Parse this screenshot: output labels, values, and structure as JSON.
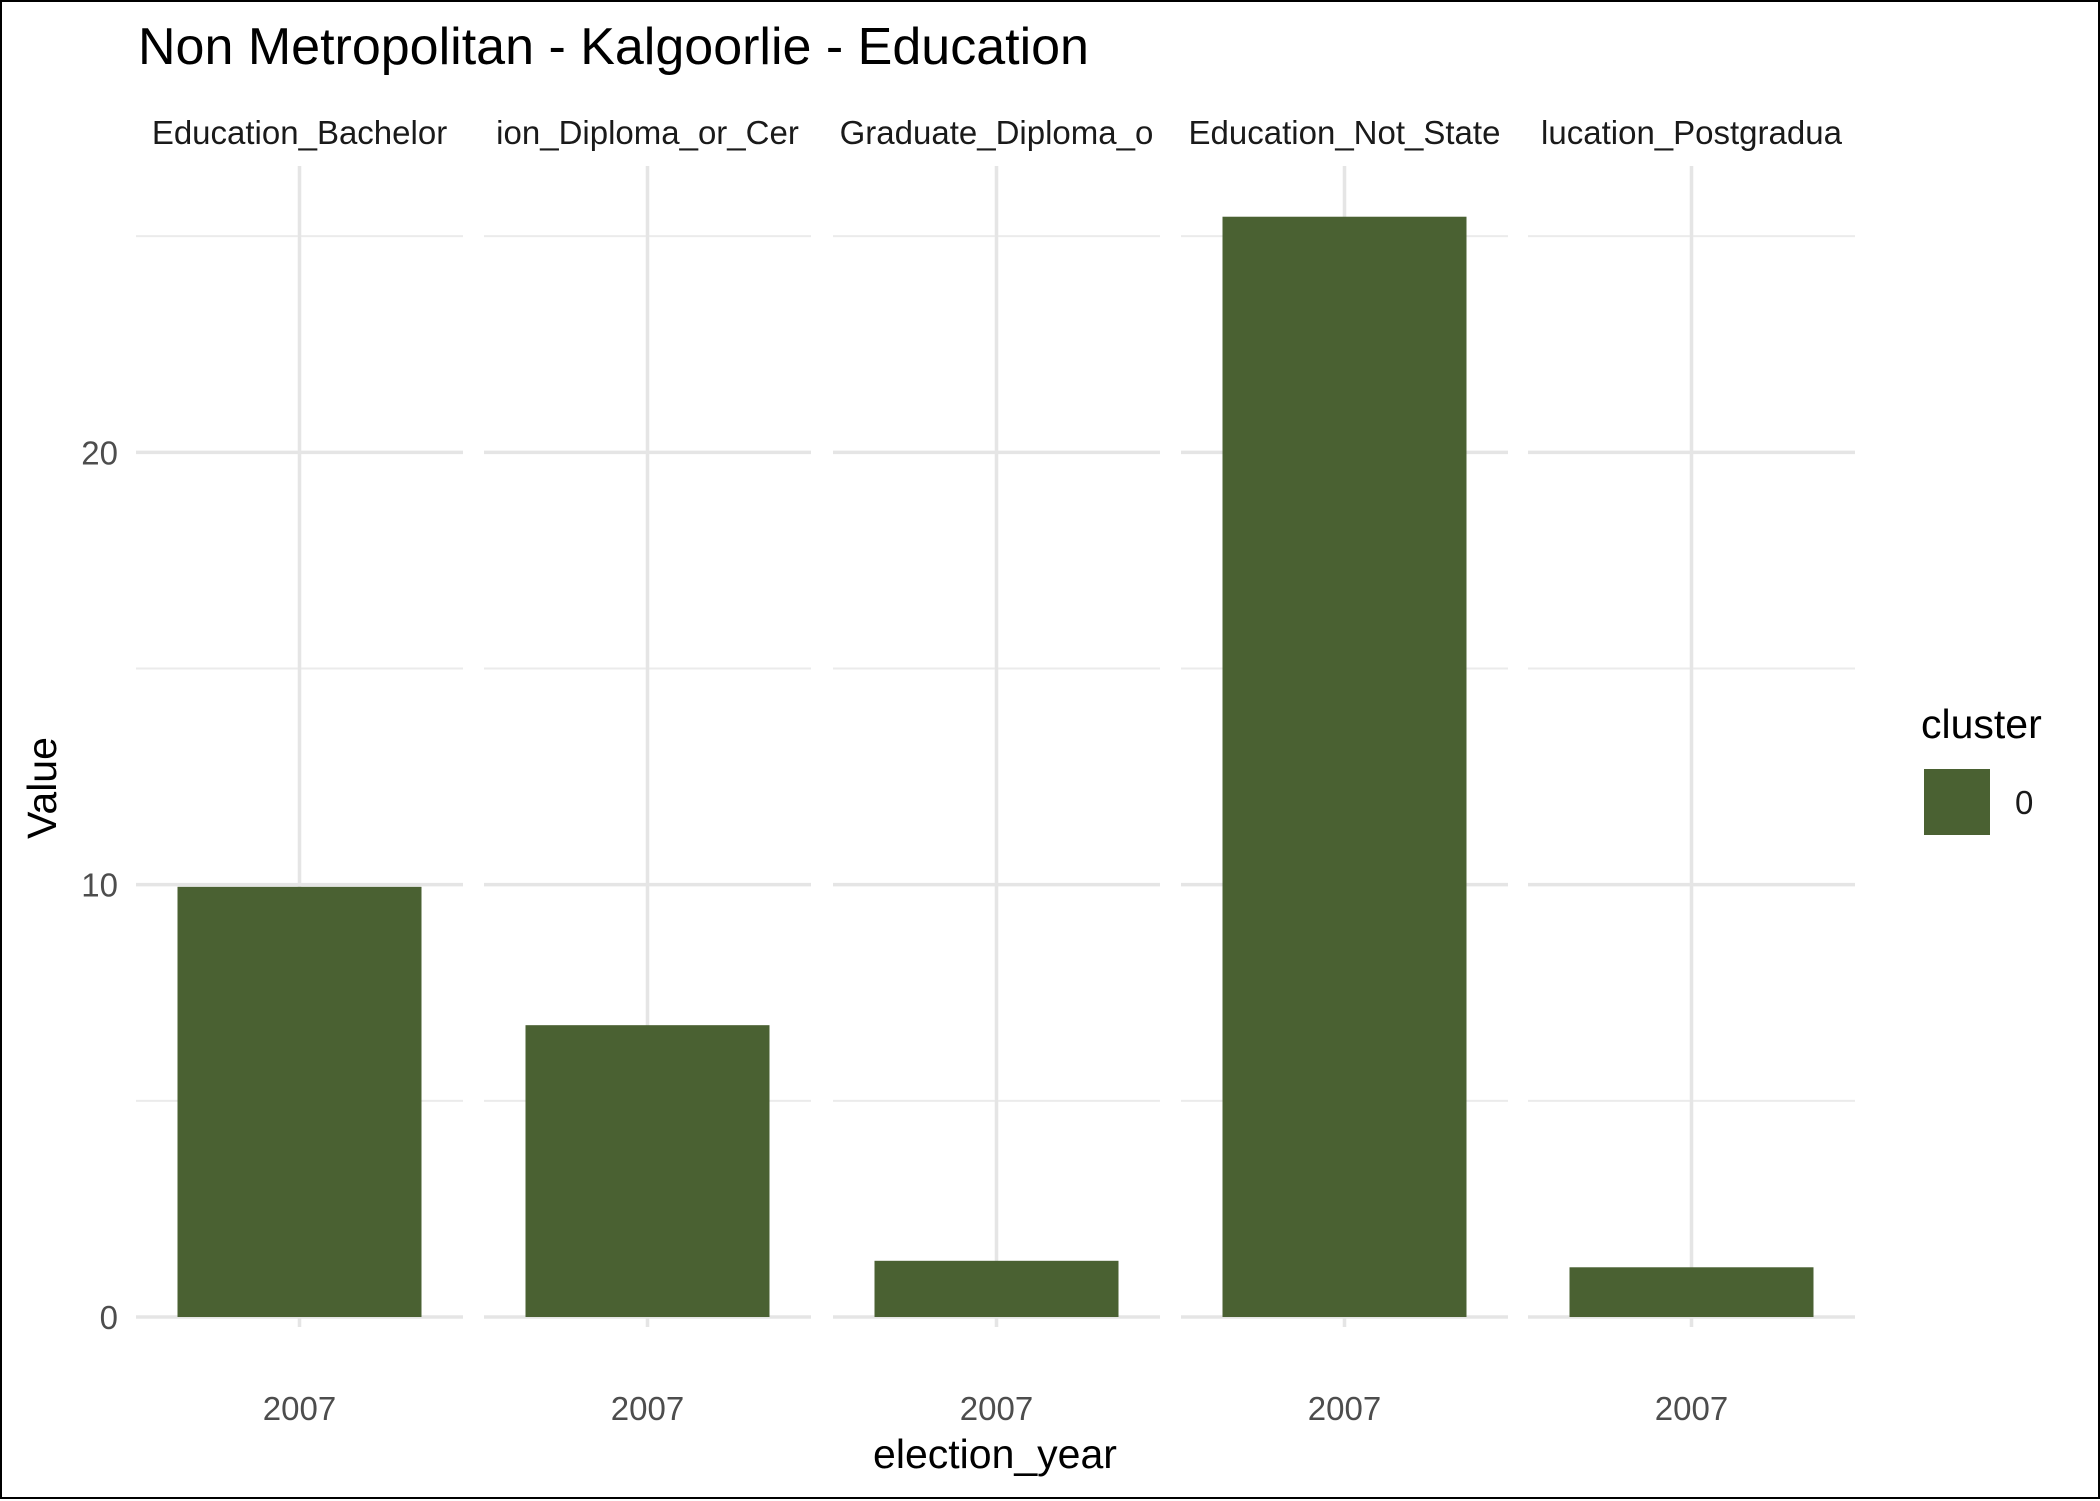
{
  "chart_data": {
    "type": "bar",
    "title": "Non Metropolitan - Kalgoorlie - Education",
    "xlabel": "election_year",
    "ylabel": "Value",
    "ylim": [
      0,
      26.6
    ],
    "yticks": [
      0,
      10,
      20
    ],
    "grid": true,
    "legend": {
      "title": "cluster",
      "position": "right",
      "entries": [
        {
          "label": "0",
          "color": "#4a6132"
        }
      ]
    },
    "facets": [
      {
        "strip": "Education_Bachelor",
        "x": "2007",
        "value": 9.95
      },
      {
        "strip": "ion_Diploma_or_Cer",
        "x": "2007",
        "value": 6.75
      },
      {
        "strip": "Graduate_Diploma_o",
        "x": "2007",
        "value": 1.3
      },
      {
        "strip": "Education_Not_State",
        "x": "2007",
        "value": 25.45
      },
      {
        "strip": "lucation_Postgradua",
        "x": "2007",
        "value": 1.15
      }
    ]
  }
}
